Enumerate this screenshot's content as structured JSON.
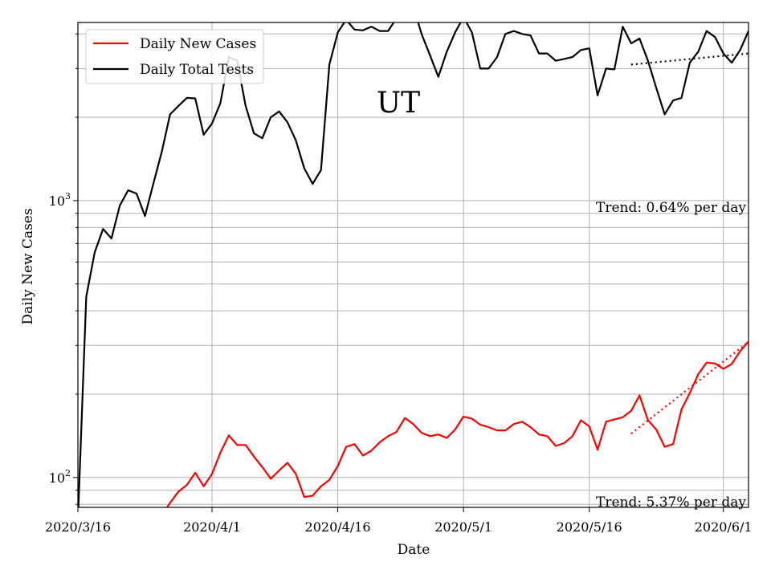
{
  "chart_data": {
    "type": "line",
    "title": "",
    "state_label": "UT",
    "xlabel": "Date",
    "ylabel": "Daily New Cases",
    "y_scale": "log",
    "xlim": [
      "2020-03-16",
      "2020-06-04"
    ],
    "ylim": [
      78,
      4400
    ],
    "grid": true,
    "legend_position": "top-left",
    "x_tick_labels": [
      "2020/3/16",
      "2020/4/1",
      "2020/4/16",
      "2020/5/1",
      "2020/5/16",
      "2020/6/1"
    ],
    "x_tick_dates": [
      "2020-03-16",
      "2020-04-01",
      "2020-04-16",
      "2020-05-01",
      "2020-05-16",
      "2020-06-01"
    ],
    "y_tick_labels": [
      {
        "value": 100,
        "base": "10",
        "exp": "2"
      },
      {
        "value": 1000,
        "base": "10",
        "exp": "3"
      }
    ],
    "series": [
      {
        "name": "Daily New Cases",
        "color": "#ff0000",
        "x": [
          "2020-03-26",
          "2020-03-27",
          "2020-03-28",
          "2020-03-29",
          "2020-03-30",
          "2020-03-31",
          "2020-04-01",
          "2020-04-02",
          "2020-04-03",
          "2020-04-04",
          "2020-04-05",
          "2020-04-06",
          "2020-04-07",
          "2020-04-08",
          "2020-04-09",
          "2020-04-10",
          "2020-04-11",
          "2020-04-12",
          "2020-04-13",
          "2020-04-14",
          "2020-04-15",
          "2020-04-16",
          "2020-04-17",
          "2020-04-18",
          "2020-04-19",
          "2020-04-20",
          "2020-04-21",
          "2020-04-22",
          "2020-04-23",
          "2020-04-24",
          "2020-04-25",
          "2020-04-26",
          "2020-04-27",
          "2020-04-28",
          "2020-04-29",
          "2020-04-30",
          "2020-05-01",
          "2020-05-02",
          "2020-05-03",
          "2020-05-04",
          "2020-05-05",
          "2020-05-06",
          "2020-05-07",
          "2020-05-08",
          "2020-05-09",
          "2020-05-10",
          "2020-05-11",
          "2020-05-12",
          "2020-05-13",
          "2020-05-14",
          "2020-05-15",
          "2020-05-16",
          "2020-05-17",
          "2020-05-18",
          "2020-05-19",
          "2020-05-20",
          "2020-05-21",
          "2020-05-22",
          "2020-05-23",
          "2020-05-24",
          "2020-05-25",
          "2020-05-26",
          "2020-05-27",
          "2020-05-28",
          "2020-05-29",
          "2020-05-30",
          "2020-05-31",
          "2020-06-01",
          "2020-06-02",
          "2020-06-03",
          "2020-06-04"
        ],
        "values": [
          73,
          81,
          89,
          94,
          104,
          93,
          103,
          123,
          142,
          131,
          131,
          119,
          109,
          99,
          106,
          113,
          103,
          85,
          86,
          93,
          98,
          110,
          129,
          132,
          120,
          125,
          134,
          141,
          146,
          164,
          156,
          145,
          141,
          143,
          139,
          149,
          166,
          163,
          155,
          152,
          148,
          148,
          156,
          159,
          152,
          143,
          141,
          130,
          133,
          141,
          161,
          153,
          126,
          159,
          162,
          165,
          174,
          198,
          161,
          149,
          129,
          132,
          176,
          202,
          236,
          260,
          258,
          247,
          257,
          286,
          310
        ],
        "trend_annotation": "Trend: 5.37% per day",
        "trend_x": [
          "2020-05-21",
          "2020-06-04"
        ],
        "trend_values": [
          144,
          309
        ]
      },
      {
        "name": "Daily Total Tests",
        "color": "#000000",
        "x": [
          "2020-03-16",
          "2020-03-17",
          "2020-03-18",
          "2020-03-19",
          "2020-03-20",
          "2020-03-21",
          "2020-03-22",
          "2020-03-23",
          "2020-03-24",
          "2020-03-25",
          "2020-03-26",
          "2020-03-27",
          "2020-03-28",
          "2020-03-29",
          "2020-03-30",
          "2020-03-31",
          "2020-04-01",
          "2020-04-02",
          "2020-04-03",
          "2020-04-04",
          "2020-04-05",
          "2020-04-06",
          "2020-04-07",
          "2020-04-08",
          "2020-04-09",
          "2020-04-10",
          "2020-04-11",
          "2020-04-12",
          "2020-04-13",
          "2020-04-14",
          "2020-04-15",
          "2020-04-16",
          "2020-04-17",
          "2020-04-18",
          "2020-04-19",
          "2020-04-20",
          "2020-04-21",
          "2020-04-22",
          "2020-04-23",
          "2020-04-24",
          "2020-04-25",
          "2020-04-26",
          "2020-04-27",
          "2020-04-28",
          "2020-04-29",
          "2020-04-30",
          "2020-05-01",
          "2020-05-02",
          "2020-05-03",
          "2020-05-04",
          "2020-05-05",
          "2020-05-06",
          "2020-05-07",
          "2020-05-08",
          "2020-05-09",
          "2020-05-10",
          "2020-05-11",
          "2020-05-12",
          "2020-05-13",
          "2020-05-14",
          "2020-05-15",
          "2020-05-16",
          "2020-05-17",
          "2020-05-18",
          "2020-05-19",
          "2020-05-20",
          "2020-05-21",
          "2020-05-22",
          "2020-05-23",
          "2020-05-24",
          "2020-05-25",
          "2020-05-26",
          "2020-05-27",
          "2020-05-28",
          "2020-05-29",
          "2020-05-30",
          "2020-05-31",
          "2020-06-01",
          "2020-06-02",
          "2020-06-03",
          "2020-06-04"
        ],
        "values": [
          70,
          450,
          650,
          790,
          730,
          960,
          1090,
          1060,
          880,
          1150,
          1500,
          2050,
          2200,
          2350,
          2340,
          1730,
          1900,
          2250,
          3300,
          3200,
          2200,
          1750,
          1680,
          2000,
          2100,
          1920,
          1650,
          1310,
          1150,
          1290,
          3100,
          4050,
          4500,
          4150,
          4120,
          4250,
          4100,
          4100,
          4550,
          4950,
          5050,
          4000,
          3350,
          2800,
          3450,
          4050,
          4600,
          4050,
          3000,
          3000,
          3300,
          4000,
          4100,
          4000,
          3950,
          3400,
          3400,
          3200,
          3250,
          3300,
          3500,
          3550,
          2400,
          3000,
          2980,
          4250,
          3700,
          3850,
          3200,
          2550,
          2050,
          2300,
          2350,
          3150,
          3450,
          4100,
          3900,
          3400,
          3150,
          3500,
          4100
        ],
        "trend_annotation": "Trend: 0.64% per day",
        "trend_x": [
          "2020-05-21",
          "2020-06-04"
        ],
        "trend_values": [
          3100,
          3400
        ]
      }
    ]
  }
}
